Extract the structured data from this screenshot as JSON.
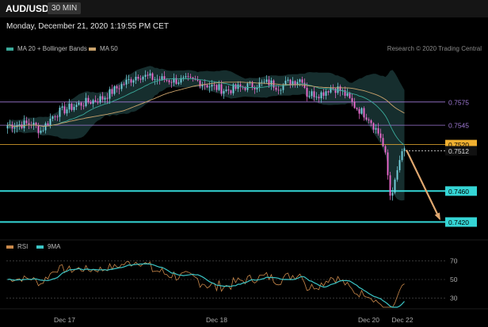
{
  "header": {
    "symbol": "AUD/USD",
    "timeframe": "30 MIN",
    "datetime": "Monday, December 21, 2020 1:19:55 PM CET"
  },
  "legend": {
    "ma20_label": "MA 20 + Bollinger Bands",
    "ma50_label": "MA 50",
    "credit": "Research © 2020 Trading Central"
  },
  "rsi_legend": {
    "rsi_label": "RSI",
    "ma_label": "9MA"
  },
  "colors": {
    "bull": "#76d3e0",
    "bear": "#ef6bd0",
    "ma20": "#3aa99a",
    "ma50": "#c9a26b",
    "band": "#1c3a3a",
    "rsi": "#c9884a",
    "rsi_ma": "#3bc5c5",
    "support": "#35d6d6",
    "resistance": "#a07ad6",
    "pivot": "#f0b030",
    "current": "#cccccc"
  },
  "chart_data": [
    {
      "type": "candlestick",
      "x_ticks": [
        "Dec 17",
        "Dec 18",
        "Dec 20",
        "Dec 22"
      ],
      "y_range": [
        0.74,
        0.763
      ],
      "levels": [
        {
          "value": 0.7575,
          "label": "0.7575",
          "kind": "resistance"
        },
        {
          "value": 0.7545,
          "label": "0.7545",
          "kind": "resistance"
        },
        {
          "value": 0.752,
          "label": "0.7520",
          "kind": "pivot"
        },
        {
          "value": 0.7512,
          "label": "0.7512",
          "kind": "current"
        },
        {
          "value": 0.746,
          "label": "0.7460",
          "kind": "support"
        },
        {
          "value": 0.742,
          "label": "0.7420",
          "kind": "support"
        }
      ],
      "forecast_arrow": {
        "from": 0.7513,
        "to": 0.742
      }
    },
    {
      "type": "line",
      "name": "RSI",
      "y_range": [
        20,
        80
      ],
      "y_ticks": [
        "70",
        "50",
        "30"
      ]
    }
  ]
}
